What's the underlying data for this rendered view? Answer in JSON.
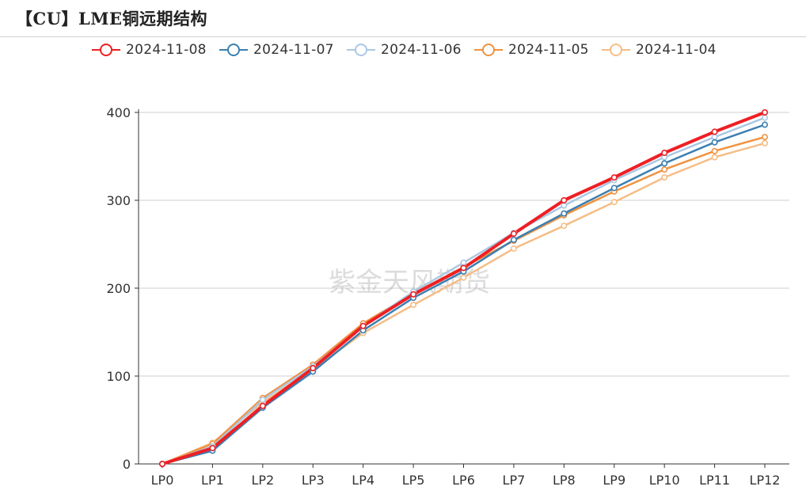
{
  "title": "【CU】LME铜远期结构",
  "watermark": "紫金天风期货",
  "chart_data": {
    "type": "line",
    "title": "【CU】LME铜远期结构",
    "categories": [
      "LP0",
      "LP1",
      "LP2",
      "LP3",
      "LP4",
      "LP5",
      "LP6",
      "LP7",
      "LP8",
      "LP9",
      "LP10",
      "LP11",
      "LP12"
    ],
    "ylim": [
      0,
      400
    ],
    "yticks": [
      0,
      100,
      200,
      300,
      400
    ],
    "grid": true,
    "legend_position": "top",
    "series": [
      {
        "name": "2024-11-04",
        "color": "#f5bd86",
        "values": [
          0,
          24,
          70,
          108,
          149,
          181,
          212,
          245,
          271,
          298,
          326,
          349,
          365
        ]
      },
      {
        "name": "2024-11-05",
        "color": "#f0923e",
        "values": [
          0,
          23,
          75,
          113,
          160,
          194,
          224,
          254,
          283,
          310,
          335,
          356,
          372
        ]
      },
      {
        "name": "2024-11-06",
        "color": "#a9c8e3",
        "values": [
          0,
          20,
          73,
          111,
          157,
          196,
          229,
          263,
          294,
          323,
          349,
          372,
          394
        ]
      },
      {
        "name": "2024-11-07",
        "color": "#3b7fb2",
        "values": [
          0,
          15,
          64,
          105,
          152,
          189,
          219,
          255,
          285,
          314,
          342,
          366,
          386
        ]
      },
      {
        "name": "2024-11-08",
        "color": "#ee1f24",
        "values": [
          0,
          18,
          66,
          109,
          157,
          193,
          223,
          262,
          300,
          326,
          354,
          378,
          400
        ]
      }
    ]
  }
}
